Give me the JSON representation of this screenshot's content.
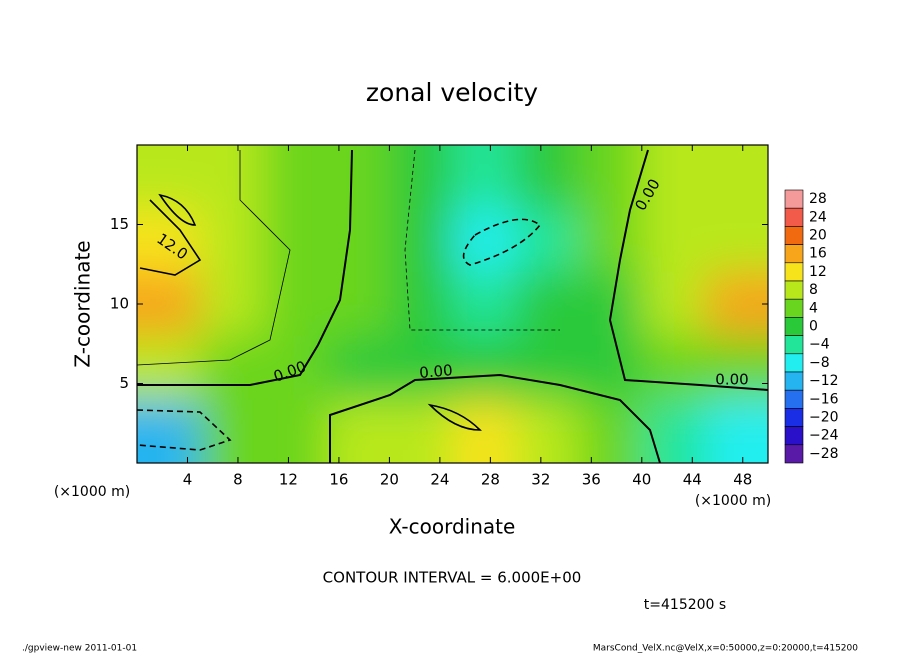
{
  "chart_data": {
    "type": "contour",
    "title": "zonal velocity",
    "xlabel": "X-coordinate",
    "ylabel": "Z-coordinate",
    "x_unit": "(×1000 m)",
    "y_unit": "(×1000 m)",
    "xlim": [
      0,
      50
    ],
    "ylim": [
      0,
      20
    ],
    "xticks": [
      4,
      8,
      12,
      16,
      20,
      24,
      28,
      32,
      36,
      40,
      44,
      48
    ],
    "yticks": [
      5,
      10,
      15
    ],
    "x": [
      2.5,
      7.5,
      12.5,
      17.5,
      22.5,
      27.5,
      32.5,
      37.5,
      42.5,
      47.5
    ],
    "y": [
      18,
      14,
      10,
      6,
      2
    ],
    "z": [
      [
        8,
        6,
        4,
        2,
        0,
        -4,
        -2,
        2,
        6,
        8
      ],
      [
        12,
        6,
        4,
        2,
        0,
        -8,
        -4,
        2,
        6,
        8
      ],
      [
        14,
        8,
        4,
        2,
        0,
        -4,
        -2,
        0,
        6,
        14
      ],
      [
        6,
        4,
        2,
        0,
        -2,
        -2,
        -2,
        0,
        2,
        4
      ],
      [
        -12,
        2,
        4,
        6,
        8,
        10,
        8,
        2,
        -4,
        -10
      ]
    ],
    "colorbar": {
      "levels": [
        28,
        24,
        20,
        16,
        12,
        8,
        4,
        0,
        {
          "value": -4,
          "label": "−4"
        },
        {
          "value": -8,
          "label": "−8"
        },
        {
          "value": -12,
          "label": "−12"
        },
        {
          "value": -16,
          "label": "−16"
        },
        {
          "value": -20,
          "label": "−20"
        },
        {
          "value": -24,
          "label": "−24"
        },
        {
          "value": -28,
          "label": "−28"
        }
      ],
      "colors": [
        "#f49a9a",
        "#f25a4a",
        "#f26a10",
        "#f7a51a",
        "#f7e31c",
        "#b8e81c",
        "#6ad51f",
        "#29c93a",
        "#22e59a",
        "#22eef0",
        "#26b4f0",
        "#2470ee",
        "#1a2ee6",
        "#2a10c8",
        "#5a1aa8"
      ]
    },
    "contour_labels": [
      "12.0",
      "0.00",
      "0.00",
      "0.00",
      "0.00"
    ],
    "contour_interval": "CONTOUR INTERVAL = 6.000E+00",
    "time": "t=415200 s",
    "footer_left": "./gpview-new   2011-01-01",
    "footer_right": "MarsCond_VelX.nc@VelX,x=0:50000,z=0:20000,t=415200"
  }
}
